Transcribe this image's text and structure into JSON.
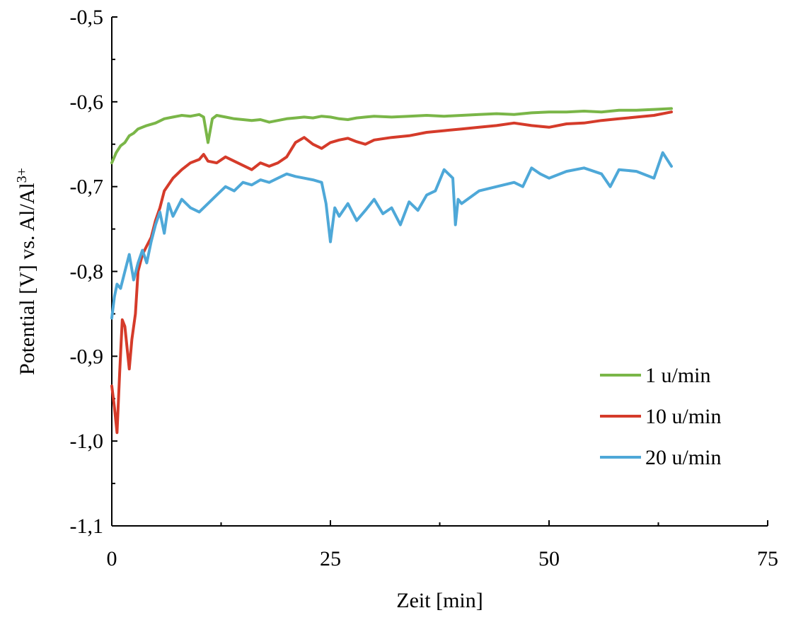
{
  "chart_data": {
    "type": "line",
    "title": "",
    "xlabel": "Zeit [min]",
    "ylabel": "Potential [V] vs. Al/Al",
    "ylabel_superscript": "3+",
    "xlim": [
      0,
      75
    ],
    "ylim": [
      -1.1,
      -0.5
    ],
    "x_ticks": [
      {
        "value": 0,
        "label": "0"
      },
      {
        "value": 25,
        "label": "25"
      },
      {
        "value": 50,
        "label": "50"
      },
      {
        "value": 75,
        "label": "75"
      }
    ],
    "x_minor_ticks": [
      12.5,
      37.5,
      62.5
    ],
    "y_ticks": [
      {
        "value": -0.5,
        "label": "-0,5"
      },
      {
        "value": -0.6,
        "label": "-0,6"
      },
      {
        "value": -0.7,
        "label": "-0,7"
      },
      {
        "value": -0.8,
        "label": "-0,8"
      },
      {
        "value": -0.9,
        "label": "-0,9"
      },
      {
        "value": -1.0,
        "label": "-1,0"
      },
      {
        "value": -1.1,
        "label": "-1,1"
      }
    ],
    "y_minor_ticks": [
      -0.55,
      -0.65,
      -0.75,
      -0.85,
      -0.95,
      -1.05
    ],
    "grid": false,
    "legend_position": "right",
    "series": [
      {
        "name": "1 u/min",
        "color": "#7ab648",
        "x": [
          0,
          0.5,
          1,
          1.5,
          2,
          2.5,
          3,
          3.5,
          4,
          5,
          6,
          7,
          8,
          9,
          10,
          10.5,
          11,
          11.5,
          12,
          13,
          14,
          15,
          16,
          17,
          18,
          19,
          20,
          21,
          22,
          23,
          24,
          25,
          26,
          27,
          28,
          29,
          30,
          32,
          34,
          36,
          38,
          40,
          42,
          44,
          46,
          48,
          50,
          52,
          54,
          56,
          58,
          60,
          62,
          64
        ],
        "y": [
          -0.672,
          -0.66,
          -0.652,
          -0.648,
          -0.64,
          -0.637,
          -0.632,
          -0.63,
          -0.628,
          -0.625,
          -0.62,
          -0.618,
          -0.616,
          -0.617,
          -0.615,
          -0.618,
          -0.648,
          -0.62,
          -0.616,
          -0.618,
          -0.62,
          -0.621,
          -0.622,
          -0.621,
          -0.624,
          -0.622,
          -0.62,
          -0.619,
          -0.618,
          -0.619,
          -0.617,
          -0.618,
          -0.62,
          -0.621,
          -0.619,
          -0.618,
          -0.617,
          -0.618,
          -0.617,
          -0.616,
          -0.617,
          -0.616,
          -0.615,
          -0.614,
          -0.615,
          -0.613,
          -0.612,
          -0.612,
          -0.611,
          -0.612,
          -0.61,
          -0.61,
          -0.609,
          -0.608
        ]
      },
      {
        "name": "10 u/min",
        "color": "#d53b2a",
        "x": [
          0,
          0.3,
          0.6,
          0.9,
          1.2,
          1.5,
          2,
          2.3,
          2.7,
          3,
          3.5,
          4,
          4.5,
          5,
          5.5,
          6,
          7,
          8,
          9,
          10,
          10.5,
          11,
          12,
          13,
          14,
          15,
          16,
          17,
          18,
          19,
          20,
          21,
          22,
          23,
          24,
          25,
          26,
          27,
          28,
          29,
          30,
          32,
          34,
          36,
          38,
          40,
          42,
          44,
          46,
          48,
          50,
          52,
          54,
          56,
          58,
          60,
          62,
          64
        ],
        "y": [
          -0.935,
          -0.96,
          -0.99,
          -0.92,
          -0.857,
          -0.865,
          -0.915,
          -0.88,
          -0.85,
          -0.8,
          -0.78,
          -0.77,
          -0.76,
          -0.74,
          -0.725,
          -0.705,
          -0.69,
          -0.68,
          -0.672,
          -0.668,
          -0.662,
          -0.67,
          -0.672,
          -0.665,
          -0.67,
          -0.675,
          -0.68,
          -0.672,
          -0.676,
          -0.672,
          -0.665,
          -0.648,
          -0.642,
          -0.65,
          -0.655,
          -0.648,
          -0.645,
          -0.643,
          -0.647,
          -0.65,
          -0.645,
          -0.642,
          -0.64,
          -0.636,
          -0.634,
          -0.632,
          -0.63,
          -0.628,
          -0.625,
          -0.628,
          -0.63,
          -0.626,
          -0.625,
          -0.622,
          -0.62,
          -0.618,
          -0.616,
          -0.612
        ]
      },
      {
        "name": "20 u/min",
        "color": "#4ea8d8",
        "x": [
          0,
          0.3,
          0.6,
          1,
          1.5,
          2,
          2.5,
          3,
          3.5,
          4,
          4.5,
          5,
          5.5,
          6,
          6.5,
          7,
          8,
          9,
          10,
          11,
          12,
          13,
          14,
          15,
          16,
          17,
          18,
          19,
          20,
          21,
          22,
          23,
          24,
          24.5,
          25,
          25.5,
          26,
          27,
          28,
          29,
          30,
          31,
          32,
          33,
          34,
          35,
          36,
          37,
          38,
          39,
          39.3,
          39.6,
          40,
          42,
          44,
          46,
          47,
          48,
          49,
          50,
          52,
          54,
          56,
          57,
          58,
          60,
          62,
          63,
          64
        ],
        "y": [
          -0.855,
          -0.83,
          -0.815,
          -0.82,
          -0.8,
          -0.78,
          -0.81,
          -0.79,
          -0.775,
          -0.79,
          -0.765,
          -0.745,
          -0.73,
          -0.755,
          -0.72,
          -0.735,
          -0.715,
          -0.725,
          -0.73,
          -0.72,
          -0.71,
          -0.7,
          -0.705,
          -0.695,
          -0.698,
          -0.692,
          -0.695,
          -0.69,
          -0.685,
          -0.688,
          -0.69,
          -0.692,
          -0.695,
          -0.72,
          -0.765,
          -0.725,
          -0.735,
          -0.72,
          -0.74,
          -0.728,
          -0.715,
          -0.732,
          -0.725,
          -0.745,
          -0.718,
          -0.728,
          -0.71,
          -0.705,
          -0.68,
          -0.69,
          -0.745,
          -0.715,
          -0.72,
          -0.705,
          -0.7,
          -0.695,
          -0.7,
          -0.678,
          -0.685,
          -0.69,
          -0.682,
          -0.678,
          -0.685,
          -0.7,
          -0.68,
          -0.682,
          -0.69,
          -0.66,
          -0.676
        ]
      }
    ]
  }
}
